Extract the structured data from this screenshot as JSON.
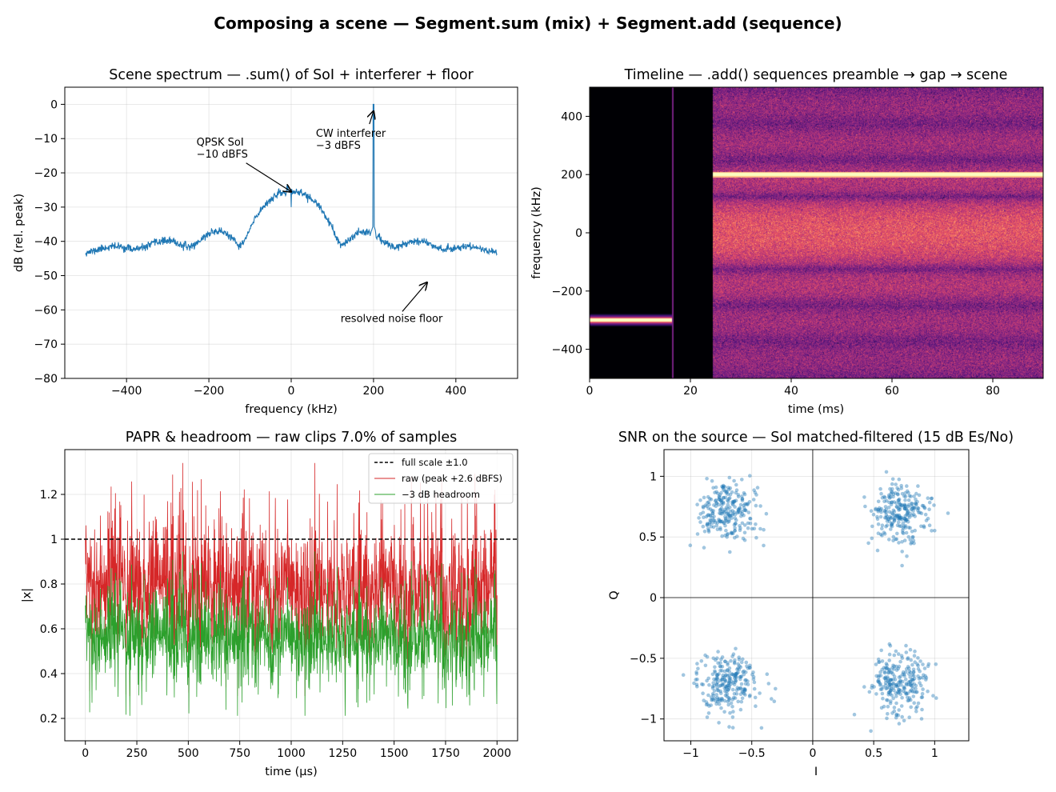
{
  "figure": {
    "title": "Composing a scene — Segment.sum (mix) + Segment.add (sequence)"
  },
  "chart_data": [
    {
      "type": "line",
      "title": "Scene spectrum — .sum() of SoI + interferer + floor",
      "xlabel": "frequency (kHz)",
      "ylabel": "dB (rel. peak)",
      "xlim": [
        -550,
        550
      ],
      "ylim": [
        -80,
        5
      ],
      "xticks": [
        -400,
        -200,
        0,
        200,
        400
      ],
      "yticks": [
        0,
        -10,
        -20,
        -30,
        -40,
        -50,
        -60,
        -70,
        -80
      ],
      "grid": true,
      "color": "#1f77b4",
      "x_range": [
        -500,
        500
      ],
      "sinc_main_lobe_peak_db": -25.5,
      "sinc_first_null_khz": 125,
      "noise_floor_db": -41,
      "cw_peak": {
        "x": 200,
        "y": 0
      },
      "soi_center_notch": {
        "x": 0,
        "y": -30
      },
      "annotations": [
        {
          "lines": [
            "QPSK SoI",
            "−10 dBFS"
          ],
          "text_at": [
            -230,
            -12
          ],
          "arrow_to": [
            0,
            -25.5
          ]
        },
        {
          "lines": [
            "CW interferer",
            "−3 dBFS"
          ],
          "text_at": [
            60,
            -9.5
          ],
          "arrow_to": [
            200,
            -2
          ]
        },
        {
          "lines": [
            "resolved noise floor"
          ],
          "text_at": [
            120,
            -63.5
          ],
          "arrow_to": [
            330,
            -52
          ]
        }
      ]
    },
    {
      "type": "heatmap",
      "title": "Timeline — .add() sequences preamble → gap → scene",
      "xlabel": "time (ms)",
      "ylabel": "frequency (kHz)",
      "xlim": [
        0,
        90
      ],
      "ylim": [
        -500,
        500
      ],
      "xticks": [
        0,
        20,
        40,
        60,
        80
      ],
      "yticks": [
        400,
        200,
        0,
        -200,
        -400
      ],
      "colormap": "magma",
      "segments": [
        {
          "label": "preamble",
          "t_start": 0,
          "t_end": 16.3,
          "tone_khz": -300
        },
        {
          "label": "gap",
          "t_start": 16.3,
          "t_end": 24.5
        },
        {
          "label": "scene",
          "t_start": 24.5,
          "t_end": 90,
          "tone_khz": 200,
          "band_khz": [
            -125,
            125
          ]
        }
      ]
    },
    {
      "type": "line",
      "title": "PAPR & headroom — raw clips 7.0% of samples",
      "xlabel": "time (µs)",
      "ylabel": "|x|",
      "xlim": [
        -100,
        2100
      ],
      "ylim": [
        0.1,
        1.4
      ],
      "xticks": [
        0,
        250,
        500,
        750,
        1000,
        1250,
        1500,
        1750,
        2000
      ],
      "yticks": [
        0.2,
        0.4,
        0.6,
        0.8,
        1.0,
        1.2
      ],
      "grid": true,
      "legend_position": "upper-right",
      "series": [
        {
          "name": "full scale ±1.0",
          "color": "#000000",
          "style": "dashed",
          "value": 1.0
        },
        {
          "name": "raw (peak +2.6 dBFS)",
          "color": "#d62728",
          "style": "solid",
          "mean": 0.78,
          "x_range": [
            0,
            2000
          ]
        },
        {
          "name": "−3 dB headroom",
          "color": "#2ca02c",
          "style": "solid",
          "mean": 0.55,
          "x_range": [
            0,
            2000
          ]
        }
      ]
    },
    {
      "type": "scatter",
      "title": "SNR on the source — SoI matched-filtered (15 dB Es/No)",
      "xlabel": "I",
      "ylabel": "Q",
      "xlim": [
        -1.22,
        1.28
      ],
      "ylim": [
        -1.18,
        1.22
      ],
      "xticks": [
        -1.0,
        -0.5,
        0.0,
        0.5,
        1.0
      ],
      "yticks": [
        1.0,
        0.5,
        0.0,
        -0.5,
        -1.0
      ],
      "grid": true,
      "color": "#1f77b4",
      "clusters": [
        {
          "I": -0.707,
          "Q": 0.707,
          "n": 250
        },
        {
          "I": 0.707,
          "Q": 0.707,
          "n": 250
        },
        {
          "I": -0.707,
          "Q": -0.707,
          "n": 250
        },
        {
          "I": 0.707,
          "Q": -0.707,
          "n": 250
        }
      ],
      "spread_std": 0.126
    }
  ]
}
